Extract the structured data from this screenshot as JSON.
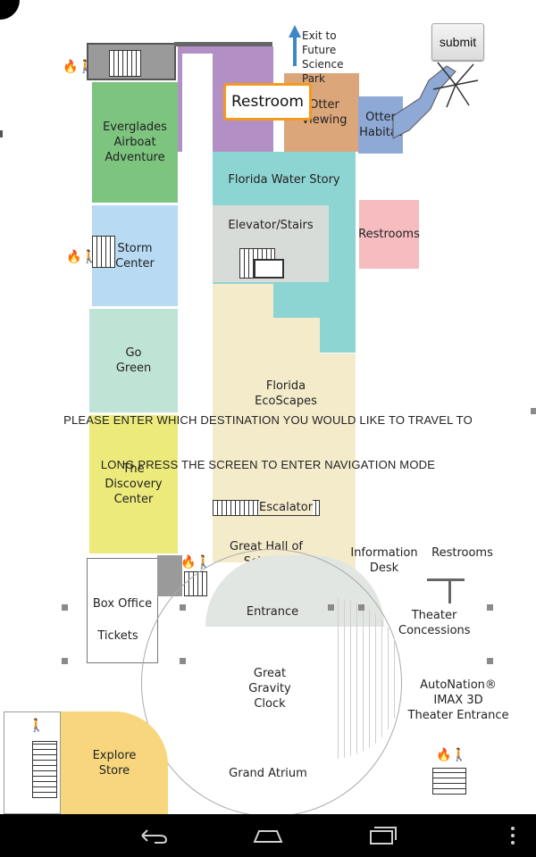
{
  "map": {
    "rooms": {
      "everglades": "Everglades\nAirboat\nAdventure",
      "storm_center": "Storm\nCenter",
      "go_green": "Go\nGreen",
      "discovery_center": "The\nDiscovery\nCenter",
      "otter_viewing": "Otter\nViewing",
      "otter_habitat": "Otter\nHabitat",
      "water_story": "Florida Water Story",
      "elevator_stairs": "Elevator/Stairs",
      "restrooms_pink": "Restrooms",
      "ecoscapes": "Florida\nEcoScapes",
      "escalator": "Escalator",
      "great_hall": "Great Hall of Science",
      "information_desk": "Information\nDesk",
      "restrooms_right": "Restrooms",
      "box_office": "Box Office",
      "tickets": "Tickets",
      "entrance": "Entrance",
      "theater_concessions": "Theater\nConcessions",
      "imax": "AutoNation® IMAX 3D\nTheater Entrance",
      "gravity_clock": "Great\nGravity\nClock",
      "explore_store": "Explore\nStore",
      "grand_atrium": "Grand Atrium",
      "exit_future": "Exit to Future\nScience Park"
    }
  },
  "overlay": {
    "instruction_destination": "PLEASE ENTER WHICH DESTINATION YOU WOULD LIKE TO TRAVEL TO",
    "instruction_navigation": "LONG PRESS THE SCREEN TO ENTER NAVIGATION MODE"
  },
  "destination_input": {
    "value": "Restroom"
  },
  "submit_button": {
    "label": "submit"
  },
  "colors": {
    "green": "#7dc47f",
    "blue": "#b8daf3",
    "mint": "#bfe3d5",
    "yellow": "#ecea7b",
    "purple": "#b290c6",
    "tan": "#dba67a",
    "steel": "#8fa9d6",
    "teal": "#8dd5d2",
    "pink": "#f6bcc0",
    "cream": "#f4ebcb",
    "peach": "#f7d67d",
    "accent": "#f39a1f"
  },
  "navbar": {
    "icons": [
      "back-icon",
      "home-icon",
      "recent-apps-icon",
      "menu-icon"
    ]
  }
}
